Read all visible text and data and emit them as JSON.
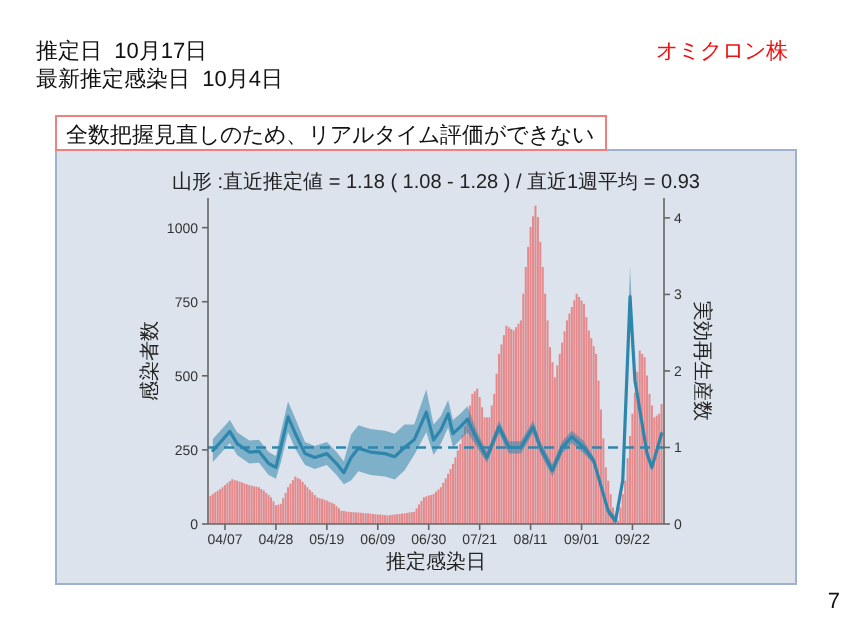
{
  "chart_data": {
    "type": "bar",
    "title": "山形 :直近推定値 = 1.18 ( 1.08 - 1.28 ) / 直近1週平均 = 0.93",
    "xlabel": "推定感染日",
    "ylabel": "感染者数",
    "y2label": "実効再生産数",
    "annotations": [
      "推定日  10月17日",
      "最新推定感染日  10月4日",
      "オミクロン株",
      "全数把握見直しのため、リアルタイム評価ができない",
      "7"
    ],
    "xlim": [
      "--03-31",
      "--10-05"
    ],
    "xticks": [
      {
        "value": "--04-07",
        "label": "04/07"
      },
      {
        "value": "--04-28",
        "label": "04/28"
      },
      {
        "value": "--05-19",
        "label": "05/19"
      },
      {
        "value": "--06-09",
        "label": "06/09"
      },
      {
        "value": "--06-30",
        "label": "06/30"
      },
      {
        "value": "--07-21",
        "label": "07/21"
      },
      {
        "value": "--08-11",
        "label": "08/11"
      },
      {
        "value": "--09-01",
        "label": "09/01"
      },
      {
        "value": "--09-22",
        "label": "09/22"
      }
    ],
    "ylim": [
      0,
      1100
    ],
    "yticks": [
      0,
      250,
      500,
      750,
      1000
    ],
    "y2lim": [
      0,
      4.26
    ],
    "y2ticks": [
      0,
      1,
      2,
      3,
      4
    ],
    "ref_lines": [
      {
        "axis": "y2",
        "value": 1,
        "color": "#2f86ad",
        "line_style": "dashed"
      }
    ],
    "series": [
      {
        "color": "#e48a8c",
        "x": [
          "--04-01",
          "--04-02",
          "--04-03",
          "--04-04",
          "--04-05",
          "--04-06",
          "--04-07",
          "--04-08",
          "--04-09",
          "--04-10",
          "--04-11",
          "--04-12",
          "--04-13",
          "--04-14",
          "--04-15",
          "--04-16",
          "--04-17",
          "--04-18",
          "--04-19",
          "--04-20",
          "--04-21",
          "--04-22",
          "--04-23",
          "--04-24",
          "--04-25",
          "--04-26",
          "--04-27",
          "--04-28",
          "--04-29",
          "--04-30",
          "--05-01",
          "--05-02",
          "--05-03",
          "--05-04",
          "--05-05",
          "--05-06",
          "--05-07",
          "--05-08",
          "--05-09",
          "--05-10",
          "--05-11",
          "--05-12",
          "--05-13",
          "--05-14",
          "--05-15",
          "--05-16",
          "--05-17",
          "--05-18",
          "--05-19",
          "--05-20",
          "--05-21",
          "--05-22",
          "--05-23",
          "--05-24",
          "--05-25",
          "--05-26",
          "--05-27",
          "--05-28",
          "--05-29",
          "--05-30",
          "--05-31",
          "--06-01",
          "--06-02",
          "--06-03",
          "--06-04",
          "--06-05",
          "--06-06",
          "--06-07",
          "--06-08",
          "--06-09",
          "--06-10",
          "--06-11",
          "--06-12",
          "--06-13",
          "--06-14",
          "--06-15",
          "--06-16",
          "--06-17",
          "--06-18",
          "--06-19",
          "--06-20",
          "--06-21",
          "--06-22",
          "--06-23",
          "--06-24",
          "--06-25",
          "--06-26",
          "--06-27",
          "--06-28",
          "--06-29",
          "--06-30",
          "--07-01",
          "--07-02",
          "--07-03",
          "--07-04",
          "--07-05",
          "--07-06",
          "--07-07",
          "--07-08",
          "--07-09",
          "--07-10",
          "--07-11",
          "--07-12",
          "--07-13",
          "--07-14",
          "--07-15",
          "--07-16",
          "--07-17",
          "--07-18",
          "--07-19",
          "--07-20",
          "--07-21",
          "--07-22",
          "--07-23",
          "--07-24",
          "--07-25",
          "--07-26",
          "--07-27",
          "--07-28",
          "--07-29",
          "--07-30",
          "--07-31",
          "--08-01",
          "--08-02",
          "--08-03",
          "--08-04",
          "--08-05",
          "--08-06",
          "--08-07",
          "--08-08",
          "--08-09",
          "--08-10",
          "--08-11",
          "--08-12",
          "--08-13",
          "--08-14",
          "--08-15",
          "--08-16",
          "--08-17",
          "--08-18",
          "--08-19",
          "--08-20",
          "--08-21",
          "--08-22",
          "--08-23",
          "--08-24",
          "--08-25",
          "--08-26",
          "--08-27",
          "--08-28",
          "--08-29",
          "--08-30",
          "--08-31",
          "--09-01",
          "--09-02",
          "--09-03",
          "--09-04",
          "--09-05",
          "--09-06",
          "--09-07",
          "--09-08",
          "--09-09",
          "--09-10",
          "--09-11",
          "--09-12",
          "--09-13",
          "--09-14",
          "--09-15",
          "--09-16",
          "--09-17",
          "--09-18",
          "--09-19",
          "--09-20",
          "--09-21",
          "--09-22",
          "--09-23",
          "--09-24",
          "--09-25",
          "--09-26",
          "--09-27",
          "--09-28",
          "--09-29",
          "--09-30",
          "--10-01",
          "--10-02",
          "--10-03",
          "--10-04"
        ],
        "values": [
          95,
          101,
          107,
          112,
          118,
          124,
          131,
          138,
          145,
          151,
          148,
          146,
          143,
          140,
          137,
          134,
          131,
          129,
          127,
          126,
          124,
          118,
          113,
          105,
          98,
          90,
          76,
          63,
          65,
          68,
          87,
          105,
          124,
          136,
          148,
          160,
          155,
          151,
          142,
          133,
          124,
          115,
          107,
          98,
          90,
          87,
          85,
          82,
          79,
          75,
          72,
          68,
          60,
          53,
          45,
          44,
          42,
          41,
          40,
          40,
          39,
          39,
          38,
          37,
          36,
          36,
          35,
          34,
          33,
          32,
          32,
          31,
          30,
          29,
          30,
          31,
          32,
          33,
          34,
          35,
          36,
          37,
          39,
          40,
          41,
          53,
          66,
          78,
          90,
          93,
          96,
          98,
          101,
          109,
          116,
          124,
          139,
          154,
          169,
          186,
          203,
          225,
          248,
          270,
          300,
          330,
          360,
          400,
          439,
          448,
          457,
          428,
          394,
          360,
          360,
          360,
          400,
          439,
          507,
          574,
          606,
          637,
          669,
          664,
          658,
          653,
          664,
          676,
          687,
          777,
          867,
          935,
          1002,
          1038,
          1074,
          1036,
          952,
          867,
          777,
          687,
          597,
          546,
          495,
          535,
          574,
          612,
          650,
          687,
          710,
          732,
          755,
          777,
          766,
          754,
          743,
          698,
          653,
          627,
          600,
          574,
          484,
          386,
          289,
          191,
          146,
          101,
          56,
          34,
          11,
          56,
          101,
          146,
          222,
          297,
          372,
          443,
          514,
          585,
          574,
          563,
          501,
          439,
          400,
          360,
          366,
          372,
          405
        ]
      },
      {
        "type": "line",
        "axis": "y2",
        "color": "#2f86ad",
        "x": [
          "--04-02",
          "--04-06",
          "--04-09",
          "--04-12",
          "--04-17",
          "--04-21",
          "--04-25",
          "--04-28",
          "--04-30",
          "--05-03",
          "--05-06",
          "--05-10",
          "--05-14",
          "--05-19",
          "--05-23",
          "--05-26",
          "--05-29",
          "--06-01",
          "--06-06",
          "--06-12",
          "--06-16",
          "--06-20",
          "--06-24",
          "--06-29",
          "--07-02",
          "--07-05",
          "--07-08",
          "--07-10",
          "--07-13",
          "--07-16",
          "--07-20",
          "--07-24",
          "--07-29",
          "--08-02",
          "--08-07",
          "--08-12",
          "--08-15",
          "--08-20",
          "--08-24",
          "--08-28",
          "--09-02",
          "--09-06",
          "--09-10",
          "--09-12",
          "--09-15",
          "--09-18",
          "--09-21",
          "--09-23",
          "--09-28",
          "--09-30",
          "--10-04"
        ],
        "values": [
          0.96,
          1.1,
          1.21,
          1.05,
          0.94,
          0.95,
          0.79,
          0.74,
          1.0,
          1.4,
          1.18,
          0.92,
          0.87,
          0.92,
          0.79,
          0.67,
          0.87,
          0.99,
          0.94,
          0.92,
          0.88,
          1.0,
          1.1,
          1.46,
          1.1,
          1.23,
          1.44,
          1.18,
          1.27,
          1.37,
          1.1,
          0.87,
          1.27,
          1.0,
          1.0,
          1.27,
          1.0,
          0.7,
          1.0,
          1.14,
          1.0,
          0.83,
          0.39,
          0.17,
          0.04,
          0.57,
          2.97,
          1.88,
          0.92,
          0.74,
          1.18
        ],
        "lower": [
          0.81,
          0.95,
          1.06,
          0.9,
          0.79,
          0.8,
          0.64,
          0.59,
          0.8,
          1.2,
          0.98,
          0.77,
          0.72,
          0.77,
          0.64,
          0.52,
          0.57,
          0.69,
          0.64,
          0.62,
          0.58,
          0.7,
          0.9,
          1.2,
          0.9,
          1.05,
          1.26,
          1.0,
          1.1,
          1.2,
          1.0,
          0.8,
          1.19,
          0.92,
          0.92,
          1.19,
          0.92,
          0.62,
          0.92,
          1.06,
          0.92,
          0.78,
          0.34,
          0.12,
          0.0,
          0.52,
          2.6,
          1.8,
          0.87,
          0.69,
          1.13
        ],
        "upper": [
          1.11,
          1.25,
          1.36,
          1.2,
          1.09,
          1.1,
          0.94,
          0.89,
          1.2,
          1.6,
          1.38,
          1.07,
          1.02,
          1.07,
          0.94,
          0.82,
          1.17,
          1.29,
          1.24,
          1.22,
          1.18,
          1.3,
          1.3,
          1.76,
          1.3,
          1.41,
          1.62,
          1.36,
          1.44,
          1.54,
          1.2,
          0.94,
          1.35,
          1.08,
          1.08,
          1.35,
          1.08,
          0.78,
          1.08,
          1.22,
          1.08,
          0.88,
          0.44,
          0.22,
          0.09,
          0.62,
          3.36,
          1.96,
          0.97,
          0.79,
          1.23
        ]
      }
    ]
  }
}
